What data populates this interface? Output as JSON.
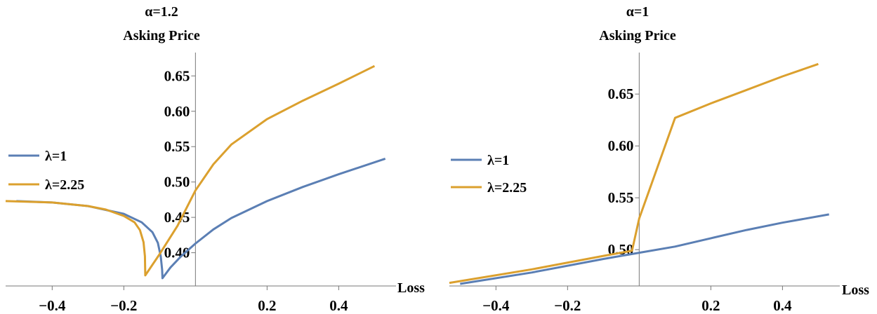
{
  "colors": {
    "series1": "#5b7fb4",
    "series2": "#dba02e",
    "axis": "#777777"
  },
  "chart_data": [
    {
      "type": "line",
      "title": "α=1.2",
      "subtitle": "Asking Price",
      "xlabel": "Loss",
      "ylabel": "",
      "xlim": [
        -0.53,
        0.56
      ],
      "ylim": [
        0.353,
        0.683
      ],
      "x_origin": 0,
      "y_axis_position": "x=0",
      "x_axis_at_y": 0.353,
      "xticks": [
        -0.4,
        -0.2,
        0.2,
        0.4
      ],
      "xtick_labels": [
        "−0.4",
        "−0.2",
        "0.2",
        "0.4"
      ],
      "yticks": [
        0.4,
        0.45,
        0.5,
        0.55,
        0.6,
        0.65
      ],
      "ytick_labels": [
        "0.40",
        "0.45",
        "0.50",
        "0.55",
        "0.60",
        "0.65"
      ],
      "legend": {
        "position": "left",
        "entries": [
          "λ=1",
          "λ=2.25"
        ]
      },
      "grid": false,
      "series": [
        {
          "name": "λ=1",
          "color": "#5b7fb4",
          "points": [
            [
              -0.5,
              0.473
            ],
            [
              -0.4,
              0.471
            ],
            [
              -0.3,
              0.466
            ],
            [
              -0.2,
              0.455
            ],
            [
              -0.15,
              0.443
            ],
            [
              -0.12,
              0.429
            ],
            [
              -0.105,
              0.414
            ],
            [
              -0.097,
              0.395
            ],
            [
              -0.093,
              0.376
            ],
            [
              -0.092,
              0.364
            ],
            [
              -0.07,
              0.379
            ],
            [
              -0.04,
              0.395
            ],
            [
              0.0,
              0.413
            ],
            [
              0.05,
              0.433
            ],
            [
              0.1,
              0.449
            ],
            [
              0.2,
              0.473
            ],
            [
              0.3,
              0.493
            ],
            [
              0.4,
              0.511
            ],
            [
              0.53,
              0.533
            ]
          ]
        },
        {
          "name": "λ=2.25",
          "color": "#dba02e",
          "points": [
            [
              -0.53,
              0.473
            ],
            [
              -0.4,
              0.471
            ],
            [
              -0.3,
              0.466
            ],
            [
              -0.25,
              0.461
            ],
            [
              -0.2,
              0.452
            ],
            [
              -0.17,
              0.443
            ],
            [
              -0.155,
              0.432
            ],
            [
              -0.145,
              0.415
            ],
            [
              -0.141,
              0.395
            ],
            [
              -0.14,
              0.368
            ],
            [
              -0.1,
              0.398
            ],
            [
              -0.05,
              0.438
            ],
            [
              0.0,
              0.488
            ],
            [
              0.05,
              0.525
            ],
            [
              0.1,
              0.553
            ],
            [
              0.2,
              0.589
            ],
            [
              0.3,
              0.615
            ],
            [
              0.4,
              0.639
            ],
            [
              0.5,
              0.664
            ]
          ]
        }
      ]
    },
    {
      "type": "line",
      "title": "α=1",
      "subtitle": "Asking Price",
      "xlabel": "Loss",
      "ylabel": "",
      "xlim": [
        -0.53,
        0.56
      ],
      "ylim": [
        0.465,
        0.69
      ],
      "x_origin": 0,
      "y_axis_position": "x=0",
      "x_axis_at_y": 0.465,
      "xticks": [
        -0.4,
        -0.2,
        0.2,
        0.4
      ],
      "xtick_labels": [
        "−0.4",
        "−0.2",
        "0.2",
        "0.4"
      ],
      "yticks": [
        0.5,
        0.55,
        0.6,
        0.65
      ],
      "ytick_labels": [
        "0.50",
        "0.55",
        "0.60",
        "0.65"
      ],
      "legend": {
        "position": "left",
        "entries": [
          "λ=1",
          "λ=2.25"
        ]
      },
      "grid": false,
      "series": [
        {
          "name": "λ=1",
          "color": "#5b7fb4",
          "points": [
            [
              -0.5,
              0.467
            ],
            [
              -0.3,
              0.478
            ],
            [
              -0.1,
              0.491
            ],
            [
              0.0,
              0.497
            ],
            [
              0.1,
              0.503
            ],
            [
              0.2,
              0.511
            ],
            [
              0.3,
              0.519
            ],
            [
              0.4,
              0.526
            ],
            [
              0.53,
              0.534
            ]
          ]
        },
        {
          "name": "λ=2.25",
          "color": "#dba02e",
          "points": [
            [
              -0.53,
              0.468
            ],
            [
              -0.3,
              0.481
            ],
            [
              -0.1,
              0.494
            ],
            [
              -0.02,
              0.499
            ],
            [
              0.0,
              0.53
            ],
            [
              0.1,
              0.627
            ],
            [
              0.2,
              0.641
            ],
            [
              0.3,
              0.654
            ],
            [
              0.4,
              0.667
            ],
            [
              0.5,
              0.679
            ]
          ]
        }
      ]
    }
  ]
}
